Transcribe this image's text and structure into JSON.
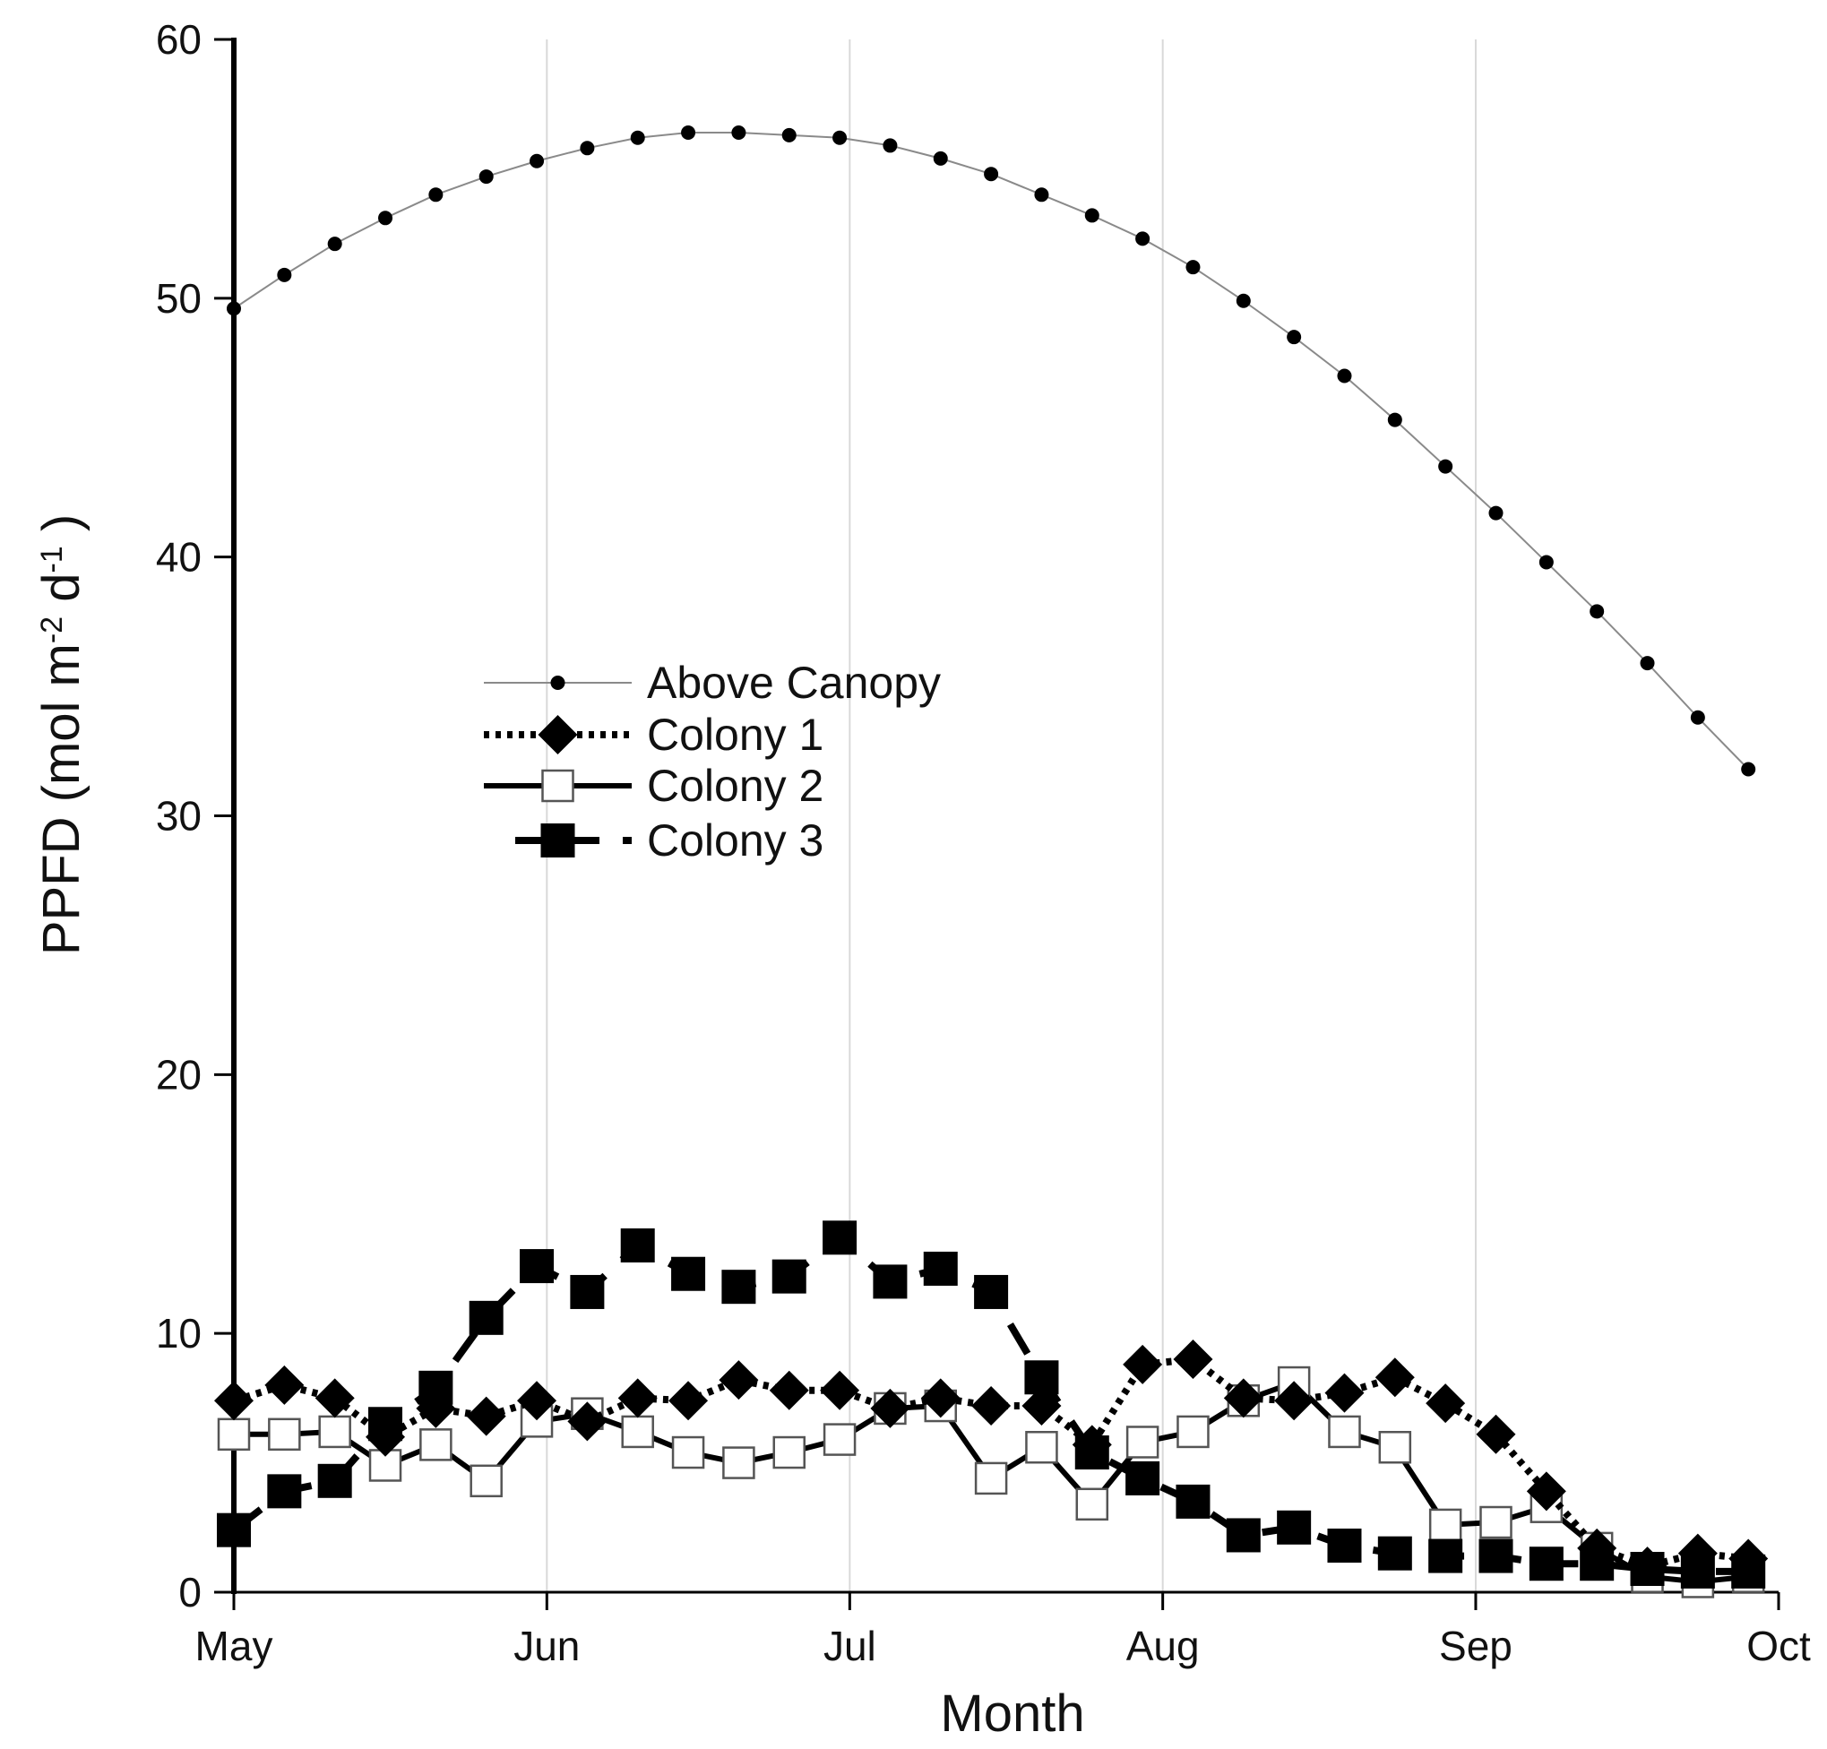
{
  "chart_data": {
    "type": "line",
    "title": "",
    "xlabel": "Month",
    "ylabel": {
      "prefix": "PPFD (mol m",
      "sup1": "-2",
      "mid": " d",
      "sup2": "-1",
      "suffix": " )"
    },
    "ylim": [
      0,
      60
    ],
    "yticks": [
      0,
      10,
      20,
      30,
      40,
      50,
      60
    ],
    "xlim": [
      0,
      153
    ],
    "x_unit": "days since May 1",
    "xticks": [
      {
        "label": "May",
        "day": 0
      },
      {
        "label": "Jun",
        "day": 31
      },
      {
        "label": "Jul",
        "day": 61
      },
      {
        "label": "Aug",
        "day": 92
      },
      {
        "label": "Sep",
        "day": 123
      },
      {
        "label": "Oct",
        "day": 153
      }
    ],
    "legend_position": "upper-left",
    "series": [
      {
        "name": "Above Canopy",
        "style": "thin line, small dots",
        "x": [
          0,
          5,
          10,
          15,
          20,
          25,
          30,
          35,
          40,
          45,
          50,
          55,
          60,
          65,
          70,
          75,
          80,
          85,
          90,
          95,
          100,
          105,
          110,
          115,
          120,
          125,
          130,
          135,
          140,
          145,
          150
        ],
        "y": [
          49.6,
          50.9,
          52.1,
          53.1,
          54.0,
          54.7,
          55.3,
          55.8,
          56.2,
          56.4,
          56.4,
          56.3,
          56.2,
          55.9,
          55.4,
          54.8,
          54.0,
          53.2,
          52.3,
          51.2,
          49.9,
          48.5,
          47.0,
          45.3,
          43.5,
          41.7,
          39.8,
          37.9,
          35.9,
          33.8,
          31.8
        ]
      },
      {
        "name": "Colony 1",
        "style": "dotted line, diamond markers",
        "x": [
          0,
          5,
          10,
          15,
          20,
          25,
          30,
          35,
          40,
          45,
          50,
          55,
          60,
          65,
          70,
          75,
          80,
          85,
          90,
          95,
          100,
          105,
          110,
          115,
          120,
          125,
          130,
          135,
          140,
          145,
          150
        ],
        "y": [
          7.4,
          8.0,
          7.5,
          6.0,
          7.1,
          6.8,
          7.4,
          6.6,
          7.5,
          7.4,
          8.2,
          7.8,
          7.8,
          7.1,
          7.5,
          7.2,
          7.2,
          5.7,
          8.8,
          9.0,
          7.5,
          7.4,
          7.7,
          8.3,
          7.3,
          6.1,
          3.9,
          1.7,
          1.0,
          1.5,
          1.3
        ]
      },
      {
        "name": "Colony 2",
        "style": "solid line, open square markers",
        "x": [
          0,
          5,
          10,
          15,
          20,
          25,
          30,
          35,
          40,
          45,
          50,
          55,
          60,
          65,
          70,
          75,
          80,
          85,
          90,
          95,
          100,
          105,
          110,
          115,
          120,
          125,
          130,
          135,
          140,
          145,
          150
        ],
        "y": [
          6.1,
          6.1,
          6.2,
          4.9,
          5.7,
          4.3,
          6.6,
          6.9,
          6.2,
          5.4,
          5.0,
          5.4,
          5.9,
          7.1,
          7.2,
          4.4,
          5.6,
          3.4,
          5.8,
          6.2,
          7.4,
          8.1,
          6.2,
          5.6,
          2.6,
          2.7,
          3.3,
          1.7,
          0.6,
          0.4,
          0.6
        ]
      },
      {
        "name": "Colony 3",
        "style": "dashed line, filled square markers",
        "x": [
          0,
          5,
          10,
          15,
          20,
          25,
          30,
          35,
          40,
          45,
          50,
          55,
          60,
          65,
          70,
          75,
          80,
          85,
          90,
          95,
          100,
          105,
          110,
          115,
          120,
          125,
          130,
          135,
          140,
          145,
          150
        ],
        "y": [
          2.4,
          3.9,
          4.3,
          6.5,
          7.9,
          10.6,
          12.6,
          11.6,
          13.4,
          12.3,
          11.8,
          12.2,
          13.7,
          12.0,
          12.5,
          11.6,
          8.3,
          5.4,
          4.4,
          3.5,
          2.2,
          2.5,
          1.8,
          1.5,
          1.4,
          1.4,
          1.1,
          1.1,
          0.9,
          0.8,
          0.8
        ]
      }
    ]
  }
}
